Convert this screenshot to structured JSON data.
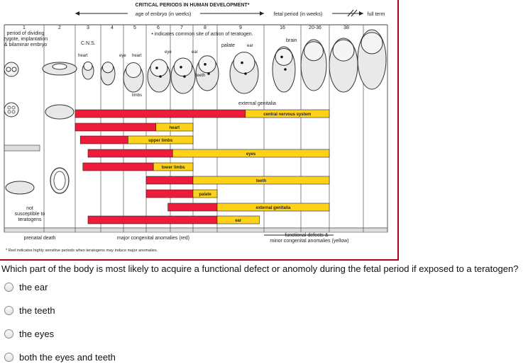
{
  "chart": {
    "title": "CRITICAL PERIODS IN HUMAN DEVELOPMENT*",
    "embryo_header": "age of embryo (in weeks)",
    "fetal_header": "fetal period (in weeks)",
    "fullterm_header": "full term",
    "weeks": [
      "1",
      "2",
      "3",
      "4",
      "5",
      "6",
      "7",
      "8",
      "9",
      "16",
      "20-36",
      "38"
    ],
    "note_period": "period of dividing zygote, implantation & bilaminar embryo",
    "note_period_lines": [
      "period of dividing",
      "zygote, implantation",
      "& bilaminar embryo"
    ],
    "note_common_site": "• indicates common site of action of teratogen.",
    "labels": {
      "cns": "C.N.S.",
      "heart_a": "heart",
      "eye_a": "eye",
      "heart_b": "heart",
      "eye_b": "eye",
      "ear_a": "ear",
      "palate": "palate",
      "ear_b": "ear",
      "brain": "brain",
      "teeth_fig": "teeth",
      "limbs": "limbs",
      "external_genitalia": "external genitalia"
    },
    "not_susceptible": "not susceptible to teratogens",
    "not_susceptible_lines": [
      "not",
      "susceptible to",
      "teratogens"
    ],
    "prenatal_death": "prenatal death",
    "major_anomalies": "major congenital anomalies (red)",
    "functional_defects": "functional defects &",
    "minor_anomalies": "minor congenital anomalies (yellow)",
    "footnote": "* Red indicates highly sensitive periods when teratogens may induce major anomalies.",
    "colors": {
      "red": "#ee1c3a",
      "yellow": "#ffd21a",
      "frame": "#b00020"
    }
  },
  "chart_data": {
    "type": "gantt",
    "x_categories": [
      "1",
      "2",
      "3",
      "4",
      "5",
      "6",
      "7",
      "8",
      "9",
      "16",
      "20-36",
      "38"
    ],
    "series": [
      {
        "name": "central nervous system",
        "red": [
          3,
          9.6
        ],
        "yellow": [
          9.6,
          12
        ]
      },
      {
        "name": "heart",
        "red": [
          3,
          6.4
        ],
        "yellow": [
          6.4,
          8
        ]
      },
      {
        "name": "upper limbs",
        "red": [
          3.2,
          5.2
        ],
        "yellow": [
          5.2,
          8
        ]
      },
      {
        "name": "eyes",
        "red": [
          3.5,
          7.1
        ],
        "yellow": [
          7.1,
          12
        ]
      },
      {
        "name": "lower limbs",
        "red": [
          3.3,
          6.3
        ],
        "yellow": [
          6.3,
          8
        ]
      },
      {
        "name": "teeth",
        "red": [
          6,
          8
        ],
        "yellow": [
          8,
          12
        ]
      },
      {
        "name": "palate",
        "red": [
          6,
          8
        ],
        "yellow": [
          8,
          9
        ]
      },
      {
        "name": "external genitalia",
        "red": [
          6.9,
          9
        ],
        "yellow": [
          9,
          12
        ]
      },
      {
        "name": "ear",
        "red": [
          3.5,
          9
        ],
        "yellow": [
          9,
          9.9
        ]
      }
    ]
  },
  "question": "Which part of the body is most likely to acquire a functional defect or anomoly during the fetal period if exposed to a teratogen?",
  "options": [
    "the ear",
    "the teeth",
    "the eyes",
    "both the eyes and teeth"
  ]
}
